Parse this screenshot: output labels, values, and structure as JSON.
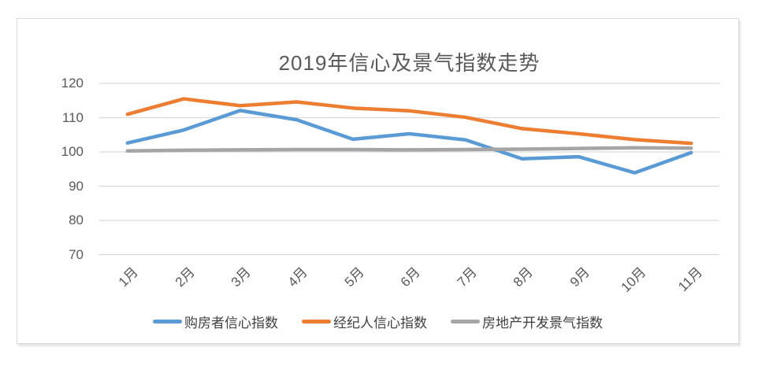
{
  "chart_data": {
    "type": "line",
    "title": "2019年信心及景气指数走势",
    "categories": [
      "1月",
      "2月",
      "3月",
      "4月",
      "5月",
      "6月",
      "7月",
      "8月",
      "9月",
      "10月",
      "11月"
    ],
    "series": [
      {
        "name": "购房者信心指数",
        "color": "#5B9BD5",
        "values": [
          102.6,
          106.4,
          112.1,
          109.4,
          103.7,
          105.3,
          103.5,
          98.0,
          98.6,
          93.9,
          99.8
        ]
      },
      {
        "name": "经纪人信心指数",
        "color": "#ED7D31",
        "values": [
          111.0,
          115.5,
          113.5,
          114.6,
          112.8,
          112.0,
          110.1,
          106.8,
          105.3,
          103.6,
          102.5
        ]
      },
      {
        "name": "房地产开发景气指数",
        "color": "#A5A5A5",
        "values": [
          100.3,
          100.5,
          100.6,
          100.7,
          100.7,
          100.6,
          100.7,
          100.8,
          101.0,
          101.2,
          101.1
        ]
      }
    ],
    "y_ticks": [
      120,
      110,
      100,
      90,
      80,
      70
    ],
    "ylim": [
      70,
      120
    ],
    "xlabel": "",
    "ylabel": "",
    "grid": "horizontal",
    "gridline_color": "#D9D9D9",
    "legend_position": "bottom",
    "axis_label_color": "#595959",
    "title_color": "#595959",
    "line_width": 4.5
  }
}
